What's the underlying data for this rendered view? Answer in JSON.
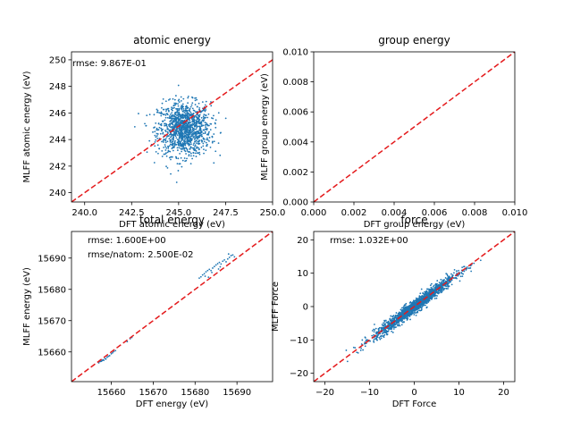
{
  "chart_data": [
    {
      "type": "scatter",
      "title": "atomic energy",
      "xlabel": "DFT atomic energy (eV)",
      "ylabel": "MLFF atomic energy (eV)",
      "xlim": [
        239.3,
        250.0
      ],
      "ylim": [
        239.3,
        250.6
      ],
      "xticks": [
        240.0,
        242.5,
        245.0,
        247.5,
        250.0
      ],
      "xtick_labels": [
        "240.0",
        "242.5",
        "245.0",
        "247.5",
        "250.0"
      ],
      "yticks": [
        240,
        242,
        244,
        246,
        248,
        250
      ],
      "ytick_labels": [
        "240",
        "242",
        "244",
        "246",
        "248",
        "250"
      ],
      "annotations": [
        "rmse: 9.867E-01"
      ],
      "diagonal_line": "red dashed y = x",
      "point_cloud": {
        "center": [
          245.3,
          244.8
        ],
        "spread": [
          0.7,
          1.0
        ],
        "count": 1200
      },
      "marker_color": "#1f77b4"
    },
    {
      "type": "scatter",
      "title": "group energy",
      "xlabel": "DFT group energy (eV)",
      "ylabel": "MLFF group energy (eV)",
      "xlim": [
        0.0,
        0.01
      ],
      "ylim": [
        0.0,
        0.01
      ],
      "xticks": [
        0.0,
        0.002,
        0.004,
        0.006,
        0.008,
        0.01
      ],
      "xtick_labels": [
        "0.000",
        "0.002",
        "0.004",
        "0.006",
        "0.008",
        "0.010"
      ],
      "yticks": [
        0.0,
        0.002,
        0.004,
        0.006,
        0.008,
        0.01
      ],
      "ytick_labels": [
        "0.000",
        "0.002",
        "0.004",
        "0.006",
        "0.008",
        "0.010"
      ],
      "annotations": [],
      "diagonal_line": "red dashed y = x",
      "point_cloud": null,
      "marker_color": "#1f77b4"
    },
    {
      "type": "scatter",
      "title": "total energy",
      "xlabel": "DFT energy (eV)",
      "ylabel": "MLFF energy (eV)",
      "xlim": [
        15650.5,
        15698.5
      ],
      "ylim": [
        15650.5,
        15698.5
      ],
      "xticks": [
        15660,
        15670,
        15680,
        15690
      ],
      "xtick_labels": [
        "15660",
        "15670",
        "15680",
        "15690"
      ],
      "yticks": [
        15660,
        15670,
        15680,
        15690
      ],
      "ytick_labels": [
        "15660",
        "15670",
        "15680",
        "15690"
      ],
      "annotations": [
        "rmse: 1.600E+00",
        "rmse/natom: 2.500E-02"
      ],
      "diagonal_line": "red dashed y = x",
      "points": [
        [
          15657.0,
          15656.5
        ],
        [
          15657.3,
          15656.9
        ],
        [
          15657.6,
          15657.0
        ],
        [
          15657.8,
          15657.2
        ],
        [
          15658.0,
          15657.5
        ],
        [
          15658.2,
          15657.3
        ],
        [
          15658.5,
          15657.9
        ],
        [
          15658.7,
          15657.7
        ],
        [
          15659.0,
          15658.3
        ],
        [
          15659.3,
          15658.6
        ],
        [
          15659.6,
          15658.8
        ],
        [
          15660.0,
          15659.4
        ],
        [
          15660.3,
          15659.7
        ],
        [
          15660.6,
          15660.1
        ],
        [
          15661.0,
          15660.4
        ],
        [
          15663.8,
          15663.3
        ],
        [
          15664.5,
          15664.2
        ],
        [
          15664.9,
          15664.6
        ],
        [
          15681.0,
          15683.6
        ],
        [
          15681.4,
          15684.0
        ],
        [
          15681.8,
          15684.6
        ],
        [
          15682.2,
          15685.0
        ],
        [
          15682.6,
          15685.6
        ],
        [
          15683.0,
          15686.0
        ],
        [
          15683.4,
          15686.4
        ],
        [
          15683.8,
          15686.0
        ],
        [
          15684.2,
          15686.8
        ],
        [
          15684.6,
          15687.3
        ],
        [
          15685.0,
          15687.8
        ],
        [
          15685.4,
          15688.2
        ],
        [
          15685.8,
          15688.6
        ],
        [
          15686.2,
          15688.1
        ],
        [
          15686.6,
          15689.0
        ],
        [
          15687.0,
          15689.4
        ],
        [
          15687.4,
          15688.8
        ],
        [
          15687.8,
          15689.7
        ],
        [
          15688.2,
          15690.2
        ],
        [
          15688.6,
          15690.8
        ],
        [
          15689.0,
          15691.0
        ],
        [
          15689.4,
          15690.4
        ],
        [
          15682.4,
          15684.2
        ],
        [
          15684.0,
          15685.4
        ],
        [
          15686.0,
          15687.2
        ],
        [
          15688.0,
          15691.3
        ],
        [
          15683.2,
          15683.9
        ],
        [
          15685.6,
          15686.5
        ]
      ],
      "marker_color": "#1f77b4"
    },
    {
      "type": "scatter",
      "title": "force",
      "xlabel": "DFT Force",
      "ylabel": "MLFF Force",
      "xlim": [
        -22.5,
        22.5
      ],
      "ylim": [
        -22.5,
        22.5
      ],
      "xticks": [
        -20,
        -10,
        0,
        10,
        20
      ],
      "xtick_labels": [
        "−20",
        "−10",
        "0",
        "10",
        "20"
      ],
      "yticks": [
        -20,
        -10,
        0,
        10,
        20
      ],
      "ytick_labels": [
        "−20",
        "−10",
        "0",
        "10",
        "20"
      ],
      "annotations": [
        "rmse: 1.032E+00"
      ],
      "diagonal_line": "red dashed y = x",
      "point_cloud": {
        "along_diagonal": true,
        "x_range": [
          -18,
          18
        ],
        "x_sd": 4.5,
        "residual_sd": 1.0,
        "count": 1600
      },
      "marker_color": "#1f77b4"
    }
  ]
}
